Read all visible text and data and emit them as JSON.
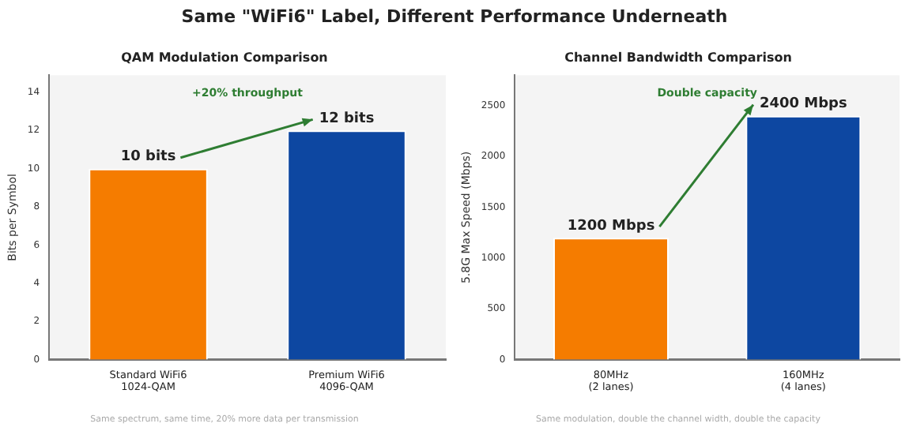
{
  "chart_data": [
    {
      "type": "bar",
      "title": "QAM Modulation Comparison",
      "ylabel": "Bits per Symbol",
      "categories": [
        "Standard WiFi6\n1024-QAM",
        "Premium WiFi6\n4096-QAM"
      ],
      "values": [
        10,
        12
      ],
      "colors": [
        "#f57c00",
        "#0d47a1"
      ],
      "value_labels": [
        "10 bits",
        "12 bits"
      ],
      "ylim": [
        0,
        14.9
      ],
      "yticks": [
        0,
        2,
        4,
        6,
        8,
        10,
        12,
        14
      ],
      "grid": false,
      "legend": false,
      "annotations": [
        "Same \"WiFi6\" Label, Different Performance Underneath",
        "+20% throughput",
        "Same spectrum, same time, 20% more data per transmission"
      ]
    },
    {
      "type": "bar",
      "title": "Channel Bandwidth Comparison",
      "ylabel": "5.8G Max Speed (Mbps)",
      "categories": [
        "80MHz\n(2 lanes)",
        "160MHz\n(4 lanes)"
      ],
      "values": [
        1200,
        2400
      ],
      "colors": [
        "#f57c00",
        "#0d47a1"
      ],
      "value_labels": [
        "1200 Mbps",
        "2400 Mbps"
      ],
      "ylim": [
        0,
        2800
      ],
      "yticks": [
        0,
        500,
        1000,
        1500,
        2000,
        2500
      ],
      "grid": false,
      "legend": false,
      "annotations": [
        "Double capacity",
        "Same modulation, double the channel width, double the capacity"
      ]
    }
  ]
}
